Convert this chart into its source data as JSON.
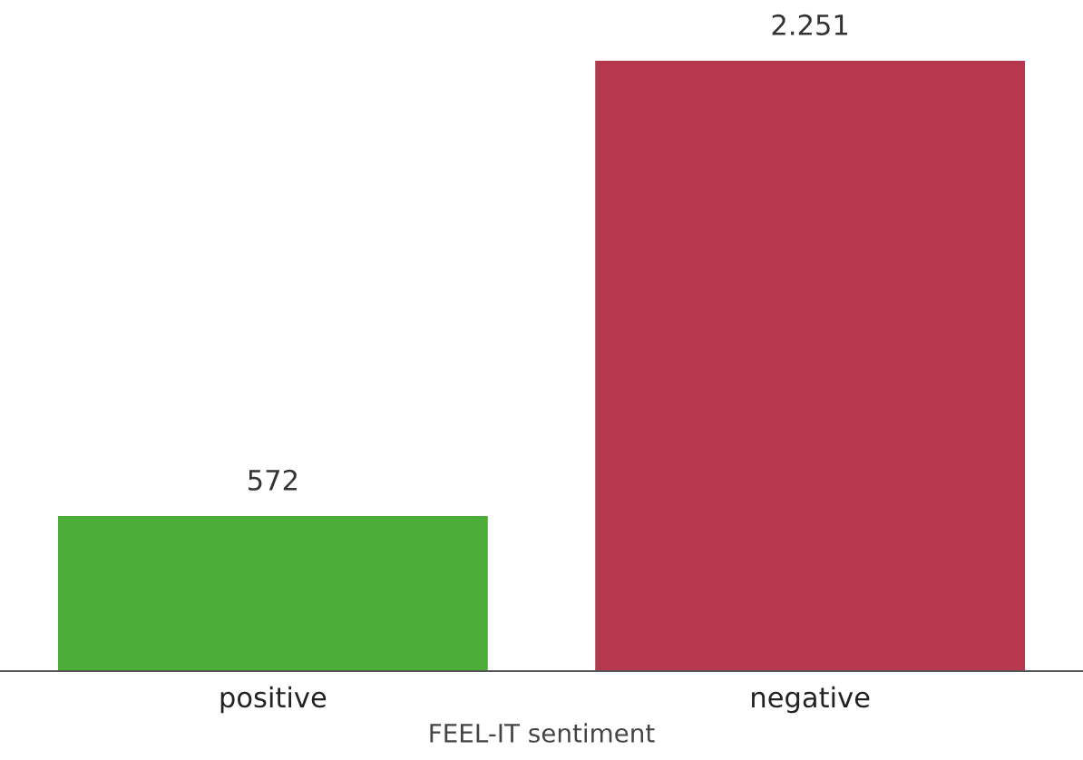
{
  "chart_data": {
    "type": "bar",
    "xlabel": "FEEL-IT sentiment",
    "categories": [
      "positive",
      "negative"
    ],
    "values": [
      572,
      2251
    ],
    "colors": [
      "#4cad38",
      "#b5384e"
    ],
    "value_labels": [
      "572",
      "2.251"
    ],
    "grid": false,
    "legend": false
  }
}
